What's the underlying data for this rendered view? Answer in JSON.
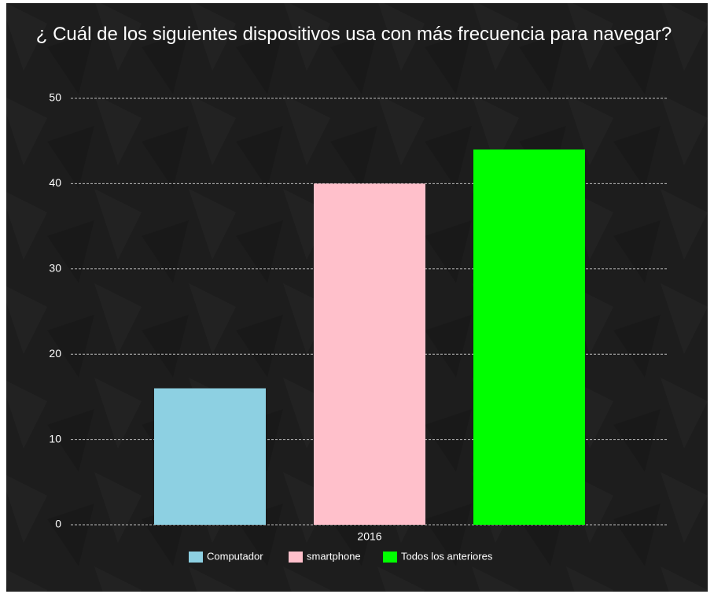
{
  "chart_data": {
    "type": "bar",
    "title": "¿ Cuál de los siguientes dispositivos usa con más frecuencia para navegar?",
    "categories": [
      "2016"
    ],
    "series": [
      {
        "name": "Computador",
        "color": "#8dd0e2",
        "values": [
          16
        ]
      },
      {
        "name": "smartphone",
        "color": "#ffc0cb",
        "values": [
          40
        ]
      },
      {
        "name": "Todos los anteriores",
        "color": "#00ff00",
        "values": [
          44
        ]
      }
    ],
    "ylim": [
      0,
      50
    ],
    "yticks": [
      0,
      10,
      20,
      30,
      40,
      50
    ],
    "grid": true,
    "legend": "bottom"
  }
}
